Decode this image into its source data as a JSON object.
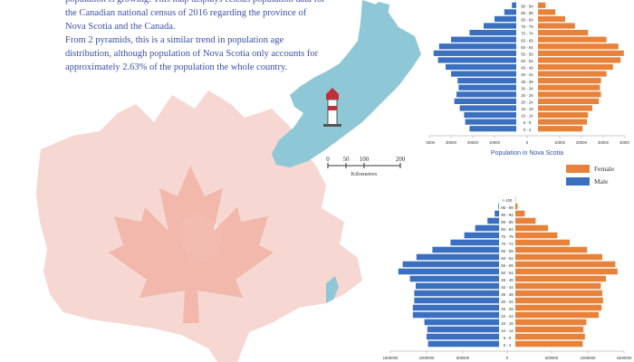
{
  "intro": {
    "line1": "population is growing. This map displays census population data for the Canadian national census of 2016 regarding the province of Nova Scotia and the Canada.",
    "line2": "From 2 pyramids, this is a similar trend in population age distribution, although population of Nova Scotia only accounts for approximately 2.63% of the population the whole country."
  },
  "scalebar": {
    "ticks": [
      "0",
      "50",
      "100",
      "200"
    ],
    "unit": "Kilometres"
  },
  "legend": {
    "female_label": "Female",
    "male_label": "Male"
  },
  "colors": {
    "female": "#e8823a",
    "male": "#3b6fbf",
    "map_fill": "#f6d7d2",
    "leaf": "#f0b3a5",
    "ns_fill": "#8ec8d6",
    "text": "#3a4fa8"
  },
  "chart_data": [
    {
      "type": "bar",
      "orientation": "horizontal-pyramid",
      "title": "Population in Nova Scotia",
      "categories": [
        "0 - 4",
        "5 - 9",
        "10 - 14",
        "15 - 19",
        "20 - 24",
        "25 - 29",
        "30 - 34",
        "35 - 39",
        "40 - 44",
        "45 - 49",
        "50 - 54",
        "55 - 59",
        "60 - 64",
        "65 - 69",
        "70 - 74",
        "75 - 79",
        "80 - 84",
        "85 - 89",
        "90 - 94"
      ],
      "series": [
        {
          "name": "Male",
          "values": [
            21500,
            23500,
            24000,
            26000,
            28500,
            27500,
            26500,
            27000,
            30000,
            32500,
            36000,
            38000,
            35500,
            30000,
            21500,
            15000,
            10000,
            5500,
            2000
          ]
        },
        {
          "name": "Female",
          "values": [
            20500,
            22500,
            23000,
            25000,
            28000,
            29000,
            28500,
            29000,
            31500,
            34500,
            38000,
            39500,
            37000,
            31500,
            23000,
            17000,
            12500,
            8000,
            3500
          ]
        }
      ],
      "x_tick_labels": [
        "40000",
        "30000",
        "20000",
        "10000",
        "0",
        "10000",
        "20000",
        "30000",
        "40000"
      ],
      "xlim": [
        -40000,
        40000
      ]
    },
    {
      "type": "bar",
      "orientation": "horizontal-pyramid",
      "title": "",
      "categories": [
        "0 - 4",
        "5 - 9",
        "10 - 14",
        "15 - 19",
        "20 - 24",
        "25 - 29",
        "30 - 34",
        "35 - 39",
        "40 - 44",
        "45 - 49",
        "50 - 54",
        "55 - 59",
        "60 - 64",
        "65 - 69",
        "70 - 74",
        "75 - 79",
        "80 - 84",
        "85 - 89",
        "90 - 94",
        "95 - 99",
        "> 100"
      ],
      "series": [
        {
          "name": "Male",
          "values": [
            980000,
            1000000,
            990000,
            1030000,
            1190000,
            1190000,
            1170000,
            1170000,
            1150000,
            1230000,
            1390000,
            1330000,
            1140000,
            920000,
            670000,
            480000,
            330000,
            160000,
            60000,
            10000,
            1000
          ]
        },
        {
          "name": "Female",
          "values": [
            930000,
            960000,
            940000,
            980000,
            1150000,
            1190000,
            1210000,
            1200000,
            1180000,
            1250000,
            1410000,
            1380000,
            1200000,
            990000,
            750000,
            580000,
            450000,
            280000,
            130000,
            30000,
            5000
          ]
        }
      ],
      "x_tick_labels": [
        "1500000",
        "1000000",
        "500000",
        "0",
        "500000",
        "1000000",
        "1500000"
      ],
      "xlim": [
        -1500000,
        1500000
      ]
    }
  ]
}
